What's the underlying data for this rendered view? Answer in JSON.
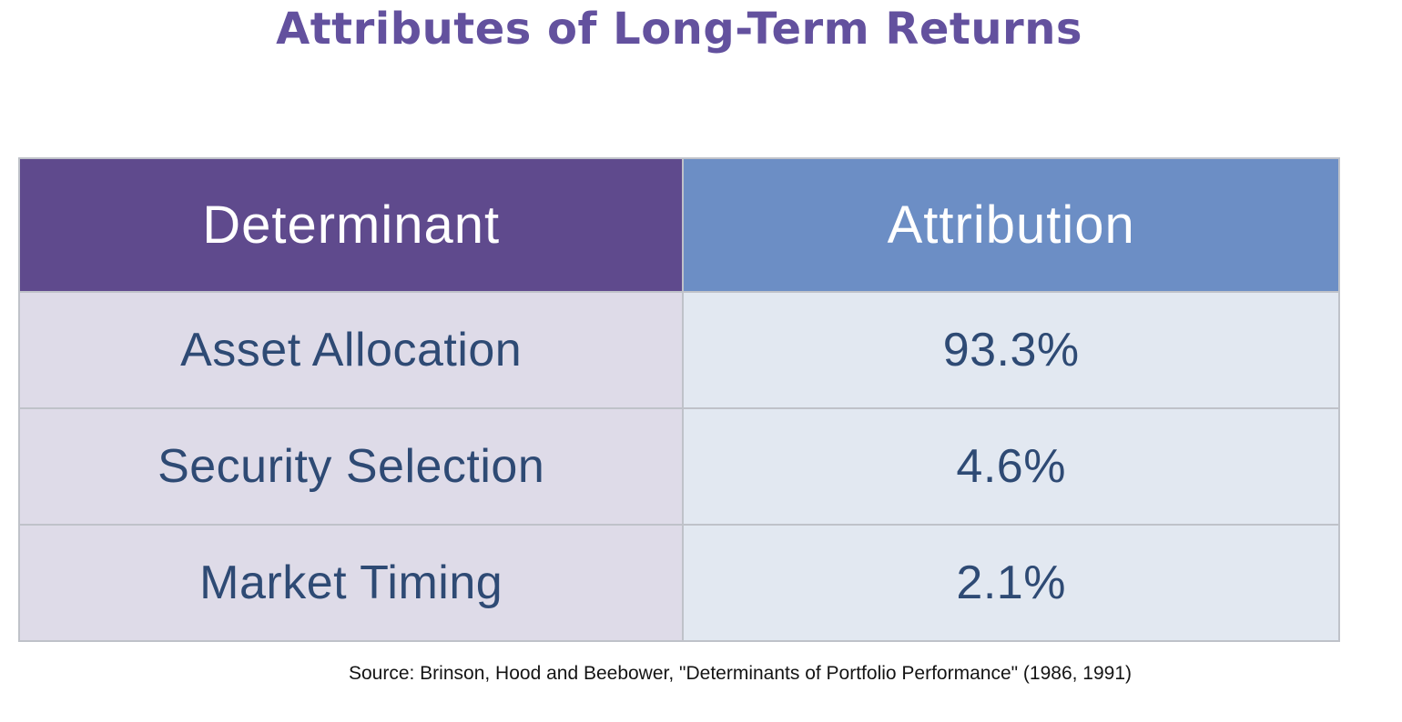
{
  "title": {
    "text": "Attributes of Long-Term Returns",
    "color": "#63519e"
  },
  "table": {
    "header": {
      "determinant_label": "Determinant",
      "attribution_label": "Attribution",
      "determinant_bg": "#5f4a8d",
      "attribution_bg": "#6c8ec5",
      "text_color": "#ffffff"
    },
    "rows": [
      {
        "determinant": "Asset Allocation",
        "attribution": "93.3%"
      },
      {
        "determinant": "Security Selection",
        "attribution": "4.6%"
      },
      {
        "determinant": "Market Timing",
        "attribution": "2.1%"
      }
    ],
    "row_bg": {
      "determinant": "#dedbe8",
      "attribution": "#e2e8f1"
    },
    "cell_text_color": "#2e4a74",
    "border_color": "#bfc2c9"
  },
  "source": {
    "text": "Source: Brinson, Hood and Beebower, \"Determinants of Portfolio Performance\" (1986, 1991)"
  },
  "chart_data": {
    "type": "table",
    "title": "Attributes of Long-Term Returns",
    "columns": [
      "Determinant",
      "Attribution"
    ],
    "categories": [
      "Asset Allocation",
      "Security Selection",
      "Market Timing"
    ],
    "values": [
      93.3,
      4.6,
      2.1
    ],
    "unit": "%",
    "source": "Source: Brinson, Hood and Beebower, \"Determinants of Portfolio Performance\" (1986, 1991)"
  }
}
